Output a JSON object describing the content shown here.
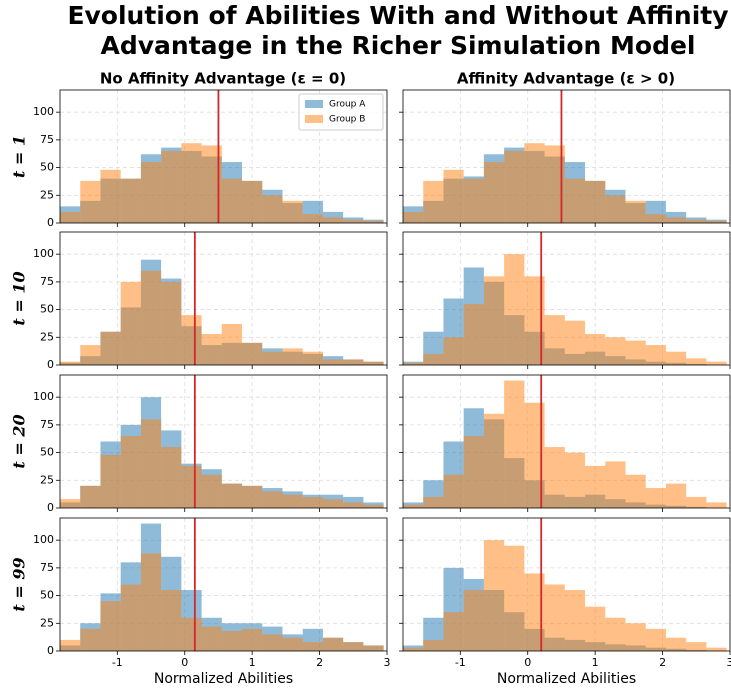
{
  "title": [
    "Evolution of Abilities With and Without Affinity",
    "Advantage in the Richer Simulation Model"
  ],
  "column_titles": [
    "No Affinity Advantage (ε = 0)",
    "Affinity Advantage (ε > 0)"
  ],
  "row_labels": [
    "t = 1",
    "t = 10",
    "t = 20",
    "t = 99"
  ],
  "chart_data": [
    {
      "type": "histogram",
      "xlim": [
        -1.85,
        3
      ],
      "ylim": [
        0,
        120
      ],
      "xticks": [
        -1,
        0,
        1,
        2,
        3
      ],
      "yticks": [
        0,
        25,
        50,
        75,
        100
      ],
      "grid": true,
      "yticklabels": true,
      "legend": "upper right",
      "series": [
        {
          "name": "Group A",
          "color": "#1f77b4",
          "bins": [
            -1.85,
            -1.55,
            -1.25,
            -0.95,
            -0.65,
            -0.35,
            -0.05,
            0.25,
            0.55,
            0.85,
            1.15,
            1.45,
            1.75,
            2.05,
            2.35,
            2.65,
            2.95
          ],
          "values": [
            15,
            20,
            40,
            40,
            62,
            68,
            65,
            60,
            55,
            38,
            30,
            18,
            20,
            10,
            5,
            3
          ]
        },
        {
          "name": "Group B",
          "color": "#ff7f0e",
          "bins": [
            -1.85,
            -1.55,
            -1.25,
            -0.95,
            -0.65,
            -0.35,
            -0.05,
            0.25,
            0.55,
            0.85,
            1.15,
            1.45,
            1.75,
            2.05,
            2.35,
            2.65,
            2.95
          ],
          "values": [
            10,
            38,
            48,
            40,
            55,
            65,
            72,
            70,
            40,
            38,
            25,
            20,
            8,
            5,
            3,
            2
          ]
        }
      ],
      "vline": {
        "value": 0.5,
        "color": "#d62728"
      }
    },
    {
      "type": "histogram",
      "xlim": [
        -1.85,
        3
      ],
      "ylim": [
        0,
        120
      ],
      "xticks": [
        -1,
        0,
        1,
        2,
        3
      ],
      "yticks": [
        0,
        25,
        50,
        75,
        100
      ],
      "grid": true,
      "series": [
        {
          "name": "Group A",
          "color": "#1f77b4",
          "bins": [
            -1.85,
            -1.55,
            -1.25,
            -0.95,
            -0.65,
            -0.35,
            -0.05,
            0.25,
            0.55,
            0.85,
            1.15,
            1.45,
            1.75,
            2.05,
            2.35,
            2.65,
            2.95
          ],
          "values": [
            15,
            20,
            40,
            42,
            62,
            68,
            65,
            60,
            55,
            38,
            30,
            18,
            20,
            10,
            5,
            3
          ]
        },
        {
          "name": "Group B",
          "color": "#ff7f0e",
          "bins": [
            -1.85,
            -1.55,
            -1.25,
            -0.95,
            -0.65,
            -0.35,
            -0.05,
            0.25,
            0.55,
            0.85,
            1.15,
            1.45,
            1.75,
            2.05,
            2.35,
            2.65,
            2.95
          ],
          "values": [
            10,
            38,
            48,
            40,
            55,
            65,
            72,
            70,
            40,
            38,
            25,
            20,
            8,
            5,
            3,
            2
          ]
        }
      ],
      "vline": {
        "value": 0.5,
        "color": "#d62728"
      }
    },
    {
      "type": "histogram",
      "xlim": [
        -1.85,
        3
      ],
      "ylim": [
        0,
        120
      ],
      "xticks": [
        -1,
        0,
        1,
        2,
        3
      ],
      "yticks": [
        0,
        25,
        50,
        75,
        100
      ],
      "grid": true,
      "yticklabels": true,
      "series": [
        {
          "name": "Group A",
          "color": "#1f77b4",
          "bins": [
            -1.85,
            -1.55,
            -1.25,
            -0.95,
            -0.65,
            -0.35,
            -0.05,
            0.25,
            0.55,
            0.85,
            1.15,
            1.45,
            1.75,
            2.05,
            2.35,
            2.65,
            2.95
          ],
          "values": [
            2,
            8,
            30,
            52,
            95,
            78,
            35,
            18,
            20,
            20,
            15,
            12,
            10,
            8,
            5,
            3
          ]
        },
        {
          "name": "Group B",
          "color": "#ff7f0e",
          "bins": [
            -1.85,
            -1.55,
            -1.25,
            -0.95,
            -0.65,
            -0.35,
            -0.05,
            0.25,
            0.55,
            0.85,
            1.15,
            1.45,
            1.75,
            2.05,
            2.35,
            2.65,
            2.95
          ],
          "values": [
            3,
            18,
            30,
            75,
            85,
            75,
            45,
            28,
            37,
            20,
            12,
            15,
            12,
            5,
            5,
            3
          ]
        }
      ],
      "vline": {
        "value": 0.15,
        "color": "#d62728"
      }
    },
    {
      "type": "histogram",
      "xlim": [
        -1.85,
        3
      ],
      "ylim": [
        0,
        120
      ],
      "xticks": [
        -1,
        0,
        1,
        2,
        3
      ],
      "yticks": [
        0,
        25,
        50,
        75,
        100
      ],
      "grid": true,
      "series": [
        {
          "name": "Group A",
          "color": "#1f77b4",
          "bins": [
            -1.85,
            -1.55,
            -1.25,
            -0.95,
            -0.65,
            -0.35,
            -0.05,
            0.25,
            0.55,
            0.85,
            1.15,
            1.45,
            1.75,
            2.05,
            2.35,
            2.65,
            2.95
          ],
          "values": [
            3,
            30,
            60,
            88,
            75,
            45,
            30,
            15,
            10,
            12,
            8,
            5,
            3,
            2,
            1,
            0
          ]
        },
        {
          "name": "Group B",
          "color": "#ff7f0e",
          "bins": [
            -1.85,
            -1.55,
            -1.25,
            -0.95,
            -0.65,
            -0.35,
            -0.05,
            0.25,
            0.55,
            0.85,
            1.15,
            1.45,
            1.75,
            2.05,
            2.35,
            2.65,
            2.95
          ],
          "values": [
            2,
            10,
            25,
            55,
            80,
            100,
            80,
            45,
            40,
            28,
            25,
            22,
            18,
            12,
            6,
            3
          ]
        }
      ],
      "vline": {
        "value": 0.2,
        "color": "#d62728"
      }
    },
    {
      "type": "histogram",
      "xlim": [
        -1.85,
        3
      ],
      "ylim": [
        0,
        120
      ],
      "xticks": [
        -1,
        0,
        1,
        2,
        3
      ],
      "yticks": [
        0,
        25,
        50,
        75,
        100
      ],
      "grid": true,
      "yticklabels": true,
      "series": [
        {
          "name": "Group A",
          "color": "#1f77b4",
          "bins": [
            -1.85,
            -1.55,
            -1.25,
            -0.95,
            -0.65,
            -0.35,
            -0.05,
            0.25,
            0.55,
            0.85,
            1.15,
            1.45,
            1.75,
            2.05,
            2.35,
            2.65,
            2.95
          ],
          "values": [
            5,
            20,
            60,
            75,
            100,
            70,
            40,
            35,
            22,
            20,
            18,
            15,
            12,
            12,
            10,
            5
          ]
        },
        {
          "name": "Group B",
          "color": "#ff7f0e",
          "bins": [
            -1.85,
            -1.55,
            -1.25,
            -0.95,
            -0.65,
            -0.35,
            -0.05,
            0.25,
            0.55,
            0.85,
            1.15,
            1.45,
            1.75,
            2.05,
            2.35,
            2.65,
            2.95
          ],
          "values": [
            8,
            20,
            48,
            65,
            80,
            55,
            38,
            30,
            22,
            20,
            15,
            12,
            10,
            8,
            5,
            3
          ]
        }
      ],
      "vline": {
        "value": 0.15,
        "color": "#d62728"
      }
    },
    {
      "type": "histogram",
      "xlim": [
        -1.85,
        3
      ],
      "ylim": [
        0,
        120
      ],
      "xticks": [
        -1,
        0,
        1,
        2,
        3
      ],
      "yticks": [
        0,
        25,
        50,
        75,
        100
      ],
      "grid": true,
      "series": [
        {
          "name": "Group A",
          "color": "#1f77b4",
          "bins": [
            -1.85,
            -1.55,
            -1.25,
            -0.95,
            -0.65,
            -0.35,
            -0.05,
            0.25,
            0.55,
            0.85,
            1.15,
            1.45,
            1.75,
            2.05,
            2.35,
            2.65,
            2.95
          ],
          "values": [
            5,
            25,
            60,
            90,
            80,
            45,
            25,
            12,
            10,
            12,
            8,
            5,
            3,
            2,
            1,
            0
          ]
        },
        {
          "name": "Group B",
          "color": "#ff7f0e",
          "bins": [
            -1.85,
            -1.55,
            -1.25,
            -0.95,
            -0.65,
            -0.35,
            -0.05,
            0.25,
            0.55,
            0.85,
            1.15,
            1.45,
            1.75,
            2.05,
            2.35,
            2.65,
            2.95
          ],
          "values": [
            3,
            10,
            30,
            65,
            85,
            115,
            95,
            55,
            50,
            38,
            42,
            30,
            18,
            22,
            10,
            5
          ]
        }
      ],
      "vline": {
        "value": 0.2,
        "color": "#d62728"
      }
    },
    {
      "type": "histogram",
      "xlim": [
        -1.85,
        3
      ],
      "ylim": [
        0,
        120
      ],
      "xticks": [
        -1,
        0,
        1,
        2,
        3
      ],
      "yticks": [
        0,
        25,
        50,
        75,
        100
      ],
      "grid": true,
      "yticklabels": true,
      "xlabel": "Normalized Abilities",
      "series": [
        {
          "name": "Group A",
          "color": "#1f77b4",
          "bins": [
            -1.85,
            -1.55,
            -1.25,
            -0.95,
            -0.65,
            -0.35,
            -0.05,
            0.25,
            0.55,
            0.85,
            1.15,
            1.45,
            1.75,
            2.05,
            2.35,
            2.65,
            2.95
          ],
          "values": [
            5,
            25,
            52,
            80,
            115,
            85,
            55,
            30,
            25,
            25,
            22,
            15,
            20,
            12,
            8,
            5
          ]
        },
        {
          "name": "Group B",
          "color": "#ff7f0e",
          "bins": [
            -1.85,
            -1.55,
            -1.25,
            -0.95,
            -0.65,
            -0.35,
            -0.05,
            0.25,
            0.55,
            0.85,
            1.15,
            1.45,
            1.75,
            2.05,
            2.35,
            2.65,
            2.95
          ],
          "values": [
            10,
            20,
            45,
            60,
            88,
            55,
            30,
            22,
            18,
            20,
            15,
            12,
            8,
            12,
            8,
            5
          ]
        }
      ],
      "vline": {
        "value": 0.15,
        "color": "#d62728"
      }
    },
    {
      "type": "histogram",
      "xlim": [
        -1.85,
        3
      ],
      "ylim": [
        0,
        120
      ],
      "xticks": [
        -1,
        0,
        1,
        2,
        3
      ],
      "yticks": [
        0,
        25,
        50,
        75,
        100
      ],
      "grid": true,
      "xlabel": "Normalized Abilities",
      "series": [
        {
          "name": "Group A",
          "color": "#1f77b4",
          "bins": [
            -1.85,
            -1.55,
            -1.25,
            -0.95,
            -0.65,
            -0.35,
            -0.05,
            0.25,
            0.55,
            0.85,
            1.15,
            1.45,
            1.75,
            2.05,
            2.35,
            2.65,
            2.95
          ],
          "values": [
            5,
            30,
            75,
            65,
            55,
            35,
            20,
            12,
            10,
            8,
            6,
            5,
            3,
            2,
            1,
            0
          ]
        },
        {
          "name": "Group B",
          "color": "#ff7f0e",
          "bins": [
            -1.85,
            -1.55,
            -1.25,
            -0.95,
            -0.65,
            -0.35,
            -0.05,
            0.25,
            0.55,
            0.85,
            1.15,
            1.45,
            1.75,
            2.05,
            2.35,
            2.65,
            2.95
          ],
          "values": [
            3,
            10,
            35,
            55,
            100,
            95,
            70,
            60,
            55,
            40,
            30,
            25,
            20,
            12,
            8,
            3
          ]
        }
      ],
      "vline": {
        "value": 0.2,
        "color": "#d62728"
      }
    }
  ]
}
